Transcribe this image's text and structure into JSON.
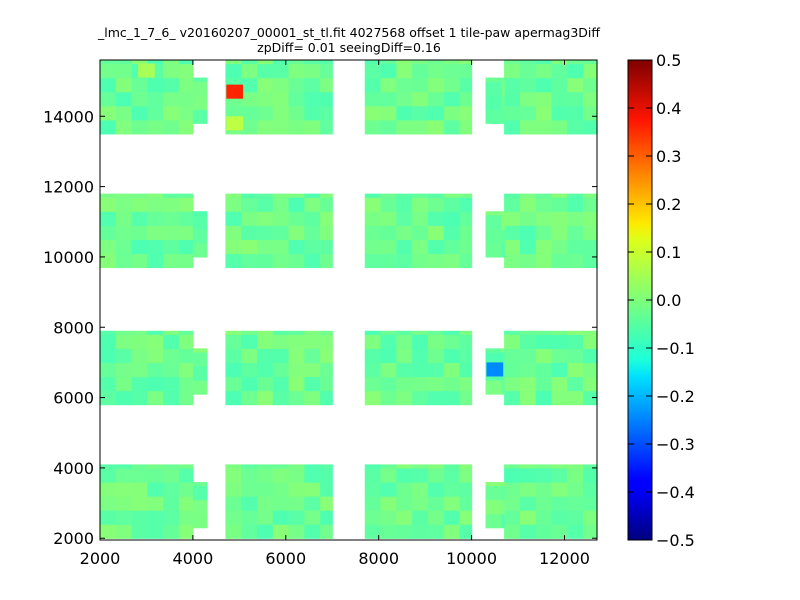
{
  "chart_data": {
    "type": "heatmap",
    "title_lines": [
      "_lmc_1_7_6_ v20160207_00001_st_tl.fit 4027568 offset 1 tile-paw apermag3Diff",
      "zpDiff= 0.01 seeingDiff=0.16"
    ],
    "xlabel": "",
    "ylabel": "",
    "xlim": [
      2000,
      12700
    ],
    "ylim": [
      1950,
      15600
    ],
    "xticks": [
      2000,
      4000,
      6000,
      8000,
      10000,
      12000
    ],
    "xtick_labels": [
      "2000",
      "4000",
      "6000",
      "8000",
      "10000",
      "12000"
    ],
    "yticks": [
      2000,
      4000,
      6000,
      8000,
      10000,
      12000,
      14000
    ],
    "ytick_labels": [
      "2000",
      "4000",
      "6000",
      "8000",
      "10000",
      "12000",
      "14000"
    ],
    "colorbar": {
      "colormap": "jet",
      "vmin": -0.5,
      "vmax": 0.5,
      "ticks": [
        0.5,
        0.4,
        0.3,
        0.2,
        0.1,
        0.0,
        -0.1,
        -0.2,
        -0.3,
        -0.4,
        -0.5
      ],
      "tick_labels": [
        "0.5",
        "0.4",
        "0.3",
        "0.2",
        "0.1",
        "0.0",
        "−0.1",
        "−0.2",
        "−0.3",
        "−0.4",
        "−0.5"
      ]
    },
    "cell_size": [
      340,
      400
    ],
    "grid": false,
    "baseline_value": -0.02,
    "value_variation": 0.03,
    "detector_columns": [
      {
        "x": [
          2000,
          4000
        ]
      },
      {
        "x": [
          4700,
          7000
        ]
      },
      {
        "x": [
          7700,
          10000
        ]
      },
      {
        "x": [
          10700,
          12700
        ]
      }
    ],
    "detector_rows": [
      {
        "y": [
          2000,
          4100
        ]
      },
      {
        "y": [
          5800,
          7900
        ]
      },
      {
        "y": [
          9700,
          11800
        ]
      },
      {
        "y": [
          13500,
          15600
        ]
      }
    ],
    "extra_columns": [
      {
        "x": [
          4000,
          4300
        ],
        "rows": [
          0,
          1,
          2,
          3
        ]
      },
      {
        "x": [
          10300,
          10700
        ],
        "rows": [
          0,
          1,
          2,
          3
        ]
      }
    ],
    "outliers": [
      {
        "x": 4900,
        "y": 14700,
        "value": 0.34
      },
      {
        "x": 10500,
        "y": 6800,
        "value": -0.24
      },
      {
        "x": 4900,
        "y": 13800,
        "value": 0.06
      },
      {
        "x": 3000,
        "y": 15300,
        "value": 0.04
      }
    ]
  }
}
